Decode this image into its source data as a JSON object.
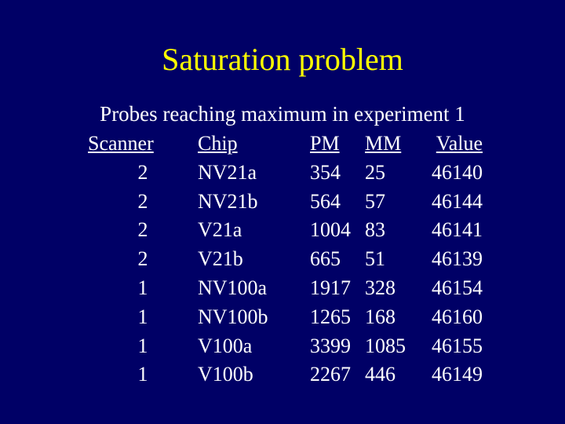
{
  "slide": {
    "title": "Saturation problem",
    "subtitle": "Probes reaching maximum in experiment 1"
  },
  "table": {
    "headers": [
      "Scanner",
      "Chip",
      "PM",
      "MM",
      "Value"
    ],
    "rows": [
      [
        "2",
        "NV21a",
        "354",
        "25",
        "46140"
      ],
      [
        "2",
        "NV21b",
        "564",
        "57",
        "46144"
      ],
      [
        "2",
        "V21a",
        "1004",
        "83",
        "46141"
      ],
      [
        "2",
        "V21b",
        "665",
        "51",
        "46139"
      ],
      [
        "1",
        "NV100a",
        "1917",
        "328",
        "46154"
      ],
      [
        "1",
        "NV100b",
        "1265",
        "168",
        "46160"
      ],
      [
        "1",
        "V100a",
        "3399",
        "1085",
        "46155"
      ],
      [
        "1",
        "V100b",
        "2267",
        "446",
        "46149"
      ]
    ]
  },
  "colors": {
    "background": "#000066",
    "title": "#ffff00",
    "text": "#ffffff"
  }
}
